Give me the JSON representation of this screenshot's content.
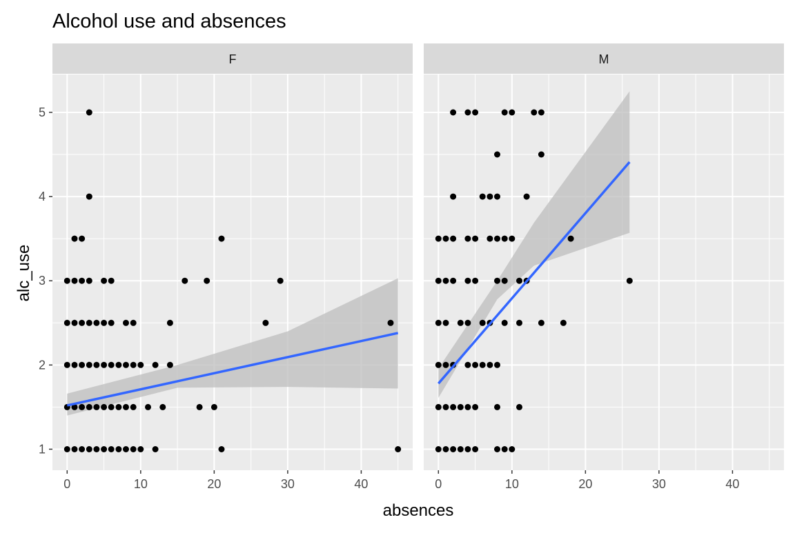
{
  "chart_data": {
    "type": "scatter",
    "title": "Alcohol use and absences",
    "xlabel": "absences",
    "ylabel": "alc_use",
    "xlim": [
      -2,
      47
    ],
    "ylim": [
      0.75,
      5.45
    ],
    "x_ticks": [
      0,
      10,
      20,
      30,
      40
    ],
    "y_ticks": [
      1,
      2,
      3,
      4,
      5
    ],
    "grid": true,
    "colors": {
      "panel_bg": "#ebebeb",
      "strip_bg": "#d9d9d9",
      "grid": "#ffffff",
      "point": "#000000",
      "smooth_line": "#3366ff",
      "ribbon": "#bebebe"
    },
    "panels": [
      {
        "label": "F",
        "points": [
          [
            3,
            5
          ],
          [
            3,
            4
          ],
          [
            1,
            3.5
          ],
          [
            2,
            3.5
          ],
          [
            21,
            3.5
          ],
          [
            0,
            3
          ],
          [
            1,
            3
          ],
          [
            2,
            3
          ],
          [
            3,
            3
          ],
          [
            5,
            3
          ],
          [
            6,
            3
          ],
          [
            16,
            3
          ],
          [
            19,
            3
          ],
          [
            29,
            3
          ],
          [
            0,
            2.5
          ],
          [
            1,
            2.5
          ],
          [
            2,
            2.5
          ],
          [
            3,
            2.5
          ],
          [
            4,
            2.5
          ],
          [
            5,
            2.5
          ],
          [
            6,
            2.5
          ],
          [
            8,
            2.5
          ],
          [
            9,
            2.5
          ],
          [
            14,
            2.5
          ],
          [
            27,
            2.5
          ],
          [
            44,
            2.5
          ],
          [
            0,
            2
          ],
          [
            1,
            2
          ],
          [
            2,
            2
          ],
          [
            3,
            2
          ],
          [
            4,
            2
          ],
          [
            5,
            2
          ],
          [
            6,
            2
          ],
          [
            7,
            2
          ],
          [
            8,
            2
          ],
          [
            9,
            2
          ],
          [
            10,
            2
          ],
          [
            12,
            2
          ],
          [
            14,
            2
          ],
          [
            0,
            1.5
          ],
          [
            1,
            1.5
          ],
          [
            2,
            1.5
          ],
          [
            3,
            1.5
          ],
          [
            4,
            1.5
          ],
          [
            5,
            1.5
          ],
          [
            6,
            1.5
          ],
          [
            7,
            1.5
          ],
          [
            8,
            1.5
          ],
          [
            9,
            1.5
          ],
          [
            11,
            1.5
          ],
          [
            13,
            1.5
          ],
          [
            18,
            1.5
          ],
          [
            20,
            1.5
          ],
          [
            0,
            1
          ],
          [
            1,
            1
          ],
          [
            2,
            1
          ],
          [
            3,
            1
          ],
          [
            4,
            1
          ],
          [
            5,
            1
          ],
          [
            6,
            1
          ],
          [
            7,
            1
          ],
          [
            8,
            1
          ],
          [
            9,
            1
          ],
          [
            10,
            1
          ],
          [
            12,
            1
          ],
          [
            21,
            1
          ],
          [
            45,
            1
          ]
        ],
        "smooth": {
          "x": [
            0,
            45
          ],
          "y": [
            1.52,
            2.38
          ]
        },
        "ribbon": {
          "x": [
            0,
            15,
            30,
            45
          ],
          "lower": [
            1.4,
            1.73,
            1.74,
            1.72
          ],
          "upper": [
            1.66,
            2.0,
            2.4,
            3.03
          ]
        }
      },
      {
        "label": "M",
        "points": [
          [
            2,
            5
          ],
          [
            4,
            5
          ],
          [
            5,
            5
          ],
          [
            9,
            5
          ],
          [
            10,
            5
          ],
          [
            13,
            5
          ],
          [
            14,
            5
          ],
          [
            8,
            4.5
          ],
          [
            14,
            4.5
          ],
          [
            2,
            4
          ],
          [
            6,
            4
          ],
          [
            7,
            4
          ],
          [
            8,
            4
          ],
          [
            12,
            4
          ],
          [
            0,
            3.5
          ],
          [
            1,
            3.5
          ],
          [
            2,
            3.5
          ],
          [
            4,
            3.5
          ],
          [
            5,
            3.5
          ],
          [
            7,
            3.5
          ],
          [
            8,
            3.5
          ],
          [
            9,
            3.5
          ],
          [
            10,
            3.5
          ],
          [
            18,
            3.5
          ],
          [
            0,
            3
          ],
          [
            1,
            3
          ],
          [
            2,
            3
          ],
          [
            4,
            3
          ],
          [
            5,
            3
          ],
          [
            8,
            3
          ],
          [
            9,
            3
          ],
          [
            11,
            3
          ],
          [
            12,
            3
          ],
          [
            26,
            3
          ],
          [
            0,
            2.5
          ],
          [
            1,
            2.5
          ],
          [
            3,
            2.5
          ],
          [
            4,
            2.5
          ],
          [
            6,
            2.5
          ],
          [
            7,
            2.5
          ],
          [
            9,
            2.5
          ],
          [
            11,
            2.5
          ],
          [
            14,
            2.5
          ],
          [
            17,
            2.5
          ],
          [
            0,
            2
          ],
          [
            1,
            2
          ],
          [
            2,
            2
          ],
          [
            4,
            2
          ],
          [
            5,
            2
          ],
          [
            6,
            2
          ],
          [
            7,
            2
          ],
          [
            8,
            2
          ],
          [
            0,
            1.5
          ],
          [
            1,
            1.5
          ],
          [
            2,
            1.5
          ],
          [
            3,
            1.5
          ],
          [
            4,
            1.5
          ],
          [
            5,
            1.5
          ],
          [
            8,
            1.5
          ],
          [
            11,
            1.5
          ],
          [
            0,
            1
          ],
          [
            1,
            1
          ],
          [
            2,
            1
          ],
          [
            3,
            1
          ],
          [
            4,
            1
          ],
          [
            5,
            1
          ],
          [
            8,
            1
          ],
          [
            9,
            1
          ],
          [
            10,
            1
          ]
        ],
        "smooth": {
          "x": [
            0,
            26
          ],
          "y": [
            1.78,
            4.41
          ]
        },
        "ribbon": {
          "x": [
            0,
            8,
            13,
            26
          ],
          "lower": [
            1.61,
            2.78,
            3.18,
            3.57
          ],
          "upper": [
            1.96,
            3.0,
            3.69,
            5.25
          ]
        }
      }
    ]
  }
}
